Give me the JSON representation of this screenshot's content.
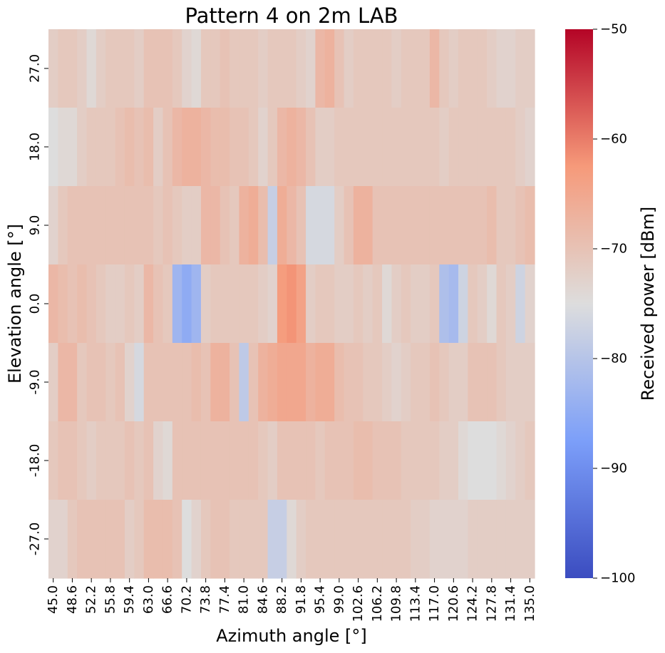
{
  "chart_data": {
    "type": "heatmap",
    "title": "Pattern 4 on 2m LAB",
    "xlabel": "Azimuth angle [°]",
    "ylabel": "Elevation angle [°]",
    "x_tick_labels": [
      "45.0",
      "48.6",
      "52.2",
      "55.8",
      "59.4",
      "63.0",
      "66.6",
      "70.2",
      "73.8",
      "77.4",
      "81.0",
      "84.6",
      "88.2",
      "91.8",
      "95.4",
      "99.0",
      "102.6",
      "106.2",
      "109.8",
      "113.4",
      "117.0",
      "120.6",
      "124.2",
      "127.8",
      "131.4",
      "135.0"
    ],
    "y_tick_labels": [
      "27.0",
      "18.0",
      "9.0",
      "0.0",
      "-9.0",
      "-18.0",
      "-27.0"
    ],
    "x": [
      45.0,
      46.8,
      48.6,
      50.4,
      52.2,
      54.0,
      55.8,
      57.6,
      59.4,
      61.2,
      63.0,
      64.8,
      66.6,
      68.4,
      70.2,
      72.0,
      73.8,
      75.6,
      77.4,
      79.2,
      81.0,
      82.8,
      84.6,
      86.4,
      88.2,
      90.0,
      91.8,
      93.6,
      95.4,
      97.2,
      99.0,
      100.8,
      102.6,
      104.4,
      106.2,
      108.0,
      109.8,
      111.6,
      113.4,
      115.2,
      117.0,
      118.8,
      120.6,
      122.4,
      124.2,
      126.0,
      127.8,
      129.6,
      131.4,
      133.2,
      135.0
    ],
    "y": [
      27.0,
      18.0,
      9.0,
      0.0,
      -9.0,
      -18.0,
      -27.0
    ],
    "z": [
      [
        -72,
        -71,
        -71,
        -72,
        -74,
        -72,
        -71,
        -71,
        -71,
        -72,
        -70,
        -70,
        -70,
        -71,
        -73,
        -74,
        -71,
        -71,
        -70,
        -71,
        -71,
        -71,
        -72,
        -71,
        -71,
        -71,
        -72,
        -73,
        -68,
        -67,
        -70,
        -72,
        -71,
        -71,
        -71,
        -71,
        -72,
        -71,
        -71,
        -71,
        -68,
        -71,
        -72,
        -71,
        -71,
        -71,
        -72,
        -73,
        -73,
        -72,
        -72
      ],
      [
        -75,
        -74,
        -74,
        -72,
        -71,
        -71,
        -71,
        -70,
        -69,
        -70,
        -69,
        -72,
        -70,
        -68,
        -67,
        -67,
        -68,
        -69,
        -69,
        -70,
        -70,
        -71,
        -73,
        -71,
        -68,
        -67,
        -68,
        -70,
        -72,
        -72,
        -71,
        -71,
        -71,
        -71,
        -71,
        -71,
        -71,
        -71,
        -71,
        -71,
        -71,
        -72,
        -71,
        -71,
        -71,
        -71,
        -71,
        -71,
        -71,
        -72,
        -73
      ],
      [
        -73,
        -71,
        -70,
        -70,
        -70,
        -70,
        -70,
        -70,
        -70,
        -70,
        -70,
        -71,
        -70,
        -71,
        -72,
        -72,
        -68,
        -68,
        -70,
        -71,
        -67,
        -66,
        -69,
        -78,
        -66,
        -68,
        -70,
        -76,
        -76,
        -76,
        -72,
        -70,
        -67,
        -67,
        -70,
        -70,
        -70,
        -70,
        -70,
        -70,
        -70,
        -70,
        -70,
        -70,
        -70,
        -70,
        -69,
        -71,
        -71,
        -70,
        -69
      ],
      [
        -68,
        -69,
        -70,
        -69,
        -70,
        -71,
        -72,
        -72,
        -71,
        -72,
        -68,
        -70,
        -71,
        -83,
        -85,
        -83,
        -72,
        -71,
        -71,
        -71,
        -71,
        -71,
        -72,
        -73,
        -63,
        -62,
        -64,
        -72,
        -71,
        -71,
        -72,
        -72,
        -71,
        -72,
        -71,
        -74,
        -72,
        -71,
        -72,
        -72,
        -71,
        -81,
        -82,
        -77,
        -71,
        -72,
        -74,
        -71,
        -72,
        -77,
        -73
      ],
      [
        -72,
        -68,
        -68,
        -71,
        -70,
        -70,
        -71,
        -70,
        -73,
        -76,
        -70,
        -70,
        -70,
        -70,
        -70,
        -69,
        -70,
        -67,
        -67,
        -70,
        -79,
        -70,
        -67,
        -66,
        -65,
        -65,
        -65,
        -67,
        -66,
        -66,
        -69,
        -70,
        -70,
        -71,
        -71,
        -72,
        -73,
        -72,
        -71,
        -71,
        -70,
        -71,
        -72,
        -72,
        -70,
        -70,
        -70,
        -71,
        -72,
        -72,
        -72
      ],
      [
        -71,
        -70,
        -70,
        -71,
        -72,
        -71,
        -71,
        -71,
        -70,
        -71,
        -70,
        -73,
        -74,
        -70,
        -70,
        -70,
        -70,
        -70,
        -70,
        -70,
        -70,
        -70,
        -71,
        -72,
        -70,
        -70,
        -70,
        -70,
        -71,
        -70,
        -70,
        -70,
        -69,
        -69,
        -70,
        -70,
        -70,
        -71,
        -71,
        -71,
        -71,
        -72,
        -72,
        -74,
        -75,
        -75,
        -75,
        -74,
        -73,
        -72,
        -71
      ],
      [
        -73,
        -73,
        -71,
        -70,
        -70,
        -70,
        -70,
        -70,
        -72,
        -71,
        -69,
        -69,
        -69,
        -70,
        -75,
        -73,
        -71,
        -70,
        -70,
        -71,
        -71,
        -71,
        -71,
        -78,
        -78,
        -74,
        -72,
        -71,
        -71,
        -71,
        -71,
        -71,
        -71,
        -71,
        -71,
        -71,
        -71,
        -71,
        -72,
        -72,
        -73,
        -73,
        -73,
        -73,
        -72,
        -72,
        -72,
        -72,
        -72,
        -72,
        -72
      ]
    ],
    "colorbar": {
      "label": "Received power [dBm]",
      "min": -100,
      "max": -50,
      "tick_labels": [
        "−50",
        "−60",
        "−70",
        "−80",
        "−90",
        "−100"
      ],
      "tick_values": [
        -50,
        -60,
        -70,
        -80,
        -90,
        -100
      ],
      "colormap": "coolwarm"
    }
  }
}
